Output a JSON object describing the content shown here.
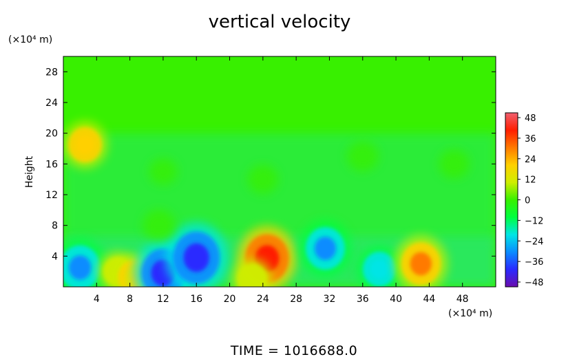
{
  "chart_data": {
    "type": "heatmap",
    "title": "vertical velocity",
    "ylabel": "Height",
    "y_unit_label": "(×10⁴ m)",
    "x_unit_label": "(×10⁴ m)",
    "footer": "TIME  =  1016688.0",
    "xlim": [
      0,
      52
    ],
    "ylim": [
      0,
      30
    ],
    "x_ticks": [
      "4",
      "8",
      "12",
      "16",
      "20",
      "24",
      "28",
      "32",
      "36",
      "40",
      "44",
      "48"
    ],
    "y_ticks": [
      "4",
      "8",
      "12",
      "16",
      "20",
      "24",
      "28"
    ],
    "colorbar": {
      "range": [
        -48,
        48
      ],
      "tick_labels": [
        "48",
        "36",
        "24",
        "12",
        "0",
        "−12",
        "−24",
        "−36",
        "−48"
      ],
      "colors": [
        "#6a0dad",
        "#2a2aff",
        "#0a8cff",
        "#00e5e5",
        "#00ff40",
        "#38f000",
        "#cfee00",
        "#ffd000",
        "#ff7a00",
        "#ff1e00",
        "#f06070"
      ]
    },
    "background_value": 0,
    "features": [
      {
        "x": 2,
        "y": 2.5,
        "value": -32
      },
      {
        "x": 2.6,
        "y": 18.5,
        "value": 22
      },
      {
        "x": 6.5,
        "y": 2,
        "value": 16
      },
      {
        "x": 8.5,
        "y": 1.3,
        "value": 20
      },
      {
        "x": 10,
        "y": 0.8,
        "value": 20
      },
      {
        "x": 12,
        "y": 1.8,
        "value": -36
      },
      {
        "x": 16,
        "y": 3.8,
        "value": -40
      },
      {
        "x": 24.5,
        "y": 3.7,
        "value": 36
      },
      {
        "x": 22.7,
        "y": 1,
        "value": 18
      },
      {
        "x": 31.5,
        "y": 5,
        "value": -30
      },
      {
        "x": 38,
        "y": 2.3,
        "value": -22
      },
      {
        "x": 43,
        "y": 3,
        "value": 30
      },
      {
        "x": 11.5,
        "y": 8,
        "value": -10
      },
      {
        "x": 24,
        "y": 14,
        "value": -8
      },
      {
        "x": 36,
        "y": 17,
        "value": -9
      },
      {
        "x": 12,
        "y": 15,
        "value": 6
      },
      {
        "x": 47,
        "y": 16,
        "value": 8
      }
    ]
  }
}
